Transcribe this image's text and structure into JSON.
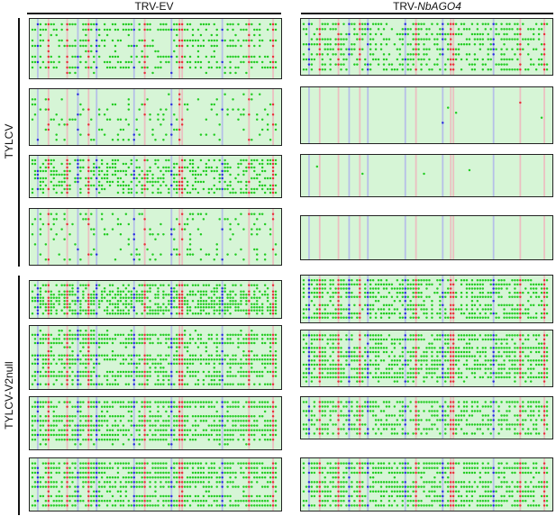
{
  "columns": [
    {
      "label": "TRV-EV",
      "label_italic": ""
    },
    {
      "label": "TRV-",
      "label_italic": "NbAGO4"
    }
  ],
  "groups": [
    {
      "label": "TYLCV"
    },
    {
      "label": "TYLCV-V2null"
    }
  ],
  "colors": {
    "methylated_CG": "#e8303a",
    "methylated_CHG": "#2a2ee0",
    "methylated_CHH": "#22cc22",
    "unmethylated_bg": "#d6f5d6",
    "CG_stripe": "#f4a8b8",
    "CHG_stripe": "#a8a8f0",
    "border": "#222222"
  },
  "panels": [
    {
      "group": "TYLCV",
      "column": "TRV-EV",
      "reads": 10,
      "methylation_density": 0.55
    },
    {
      "group": "TYLCV",
      "column": "TRV-EV",
      "reads": 10,
      "methylation_density": 0.18
    },
    {
      "group": "TYLCV",
      "column": "TRV-EV",
      "reads": 10,
      "methylation_density": 0.45
    },
    {
      "group": "TYLCV",
      "column": "TRV-EV",
      "reads": 10,
      "methylation_density": 0.22
    },
    {
      "group": "TYLCV",
      "column": "TRV-NbAGO4",
      "reads": 10,
      "methylation_density": 0.5
    },
    {
      "group": "TYLCV",
      "column": "TRV-NbAGO4",
      "reads": 10,
      "methylation_density": 0.01
    },
    {
      "group": "TYLCV",
      "column": "TRV-NbAGO4",
      "reads": 10,
      "methylation_density": 0.005
    },
    {
      "group": "TYLCV",
      "column": "TRV-NbAGO4",
      "reads": 10,
      "methylation_density": 0.0
    },
    {
      "group": "TYLCV-V2null",
      "column": "TRV-EV",
      "reads": 10,
      "methylation_density": 0.6
    },
    {
      "group": "TYLCV-V2null",
      "column": "TRV-EV",
      "reads": 14,
      "methylation_density": 0.72
    },
    {
      "group": "TYLCV-V2null",
      "column": "TRV-EV",
      "reads": 10,
      "methylation_density": 0.7
    },
    {
      "group": "TYLCV-V2null",
      "column": "TRV-EV",
      "reads": 10,
      "methylation_density": 0.72
    },
    {
      "group": "TYLCV-V2null",
      "column": "TRV-NbAGO4",
      "reads": 10,
      "methylation_density": 0.62
    },
    {
      "group": "TYLCV-V2null",
      "column": "TRV-NbAGO4",
      "reads": 12,
      "methylation_density": 0.66
    },
    {
      "group": "TYLCV-V2null",
      "column": "TRV-NbAGO4",
      "reads": 8,
      "methylation_density": 0.58
    },
    {
      "group": "TYLCV-V2null",
      "column": "TRV-NbAGO4",
      "reads": 10,
      "methylation_density": 0.68
    }
  ]
}
